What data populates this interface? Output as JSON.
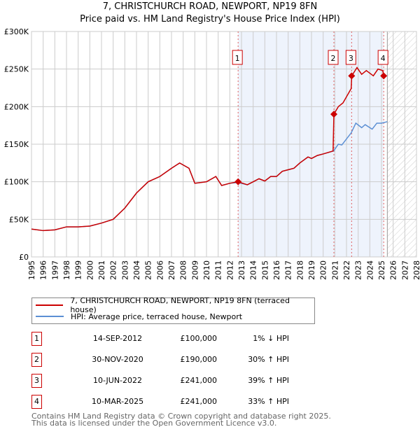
{
  "chart_data": {
    "type": "line",
    "title": "7, CHRISTCHURCH ROAD, NEWPORT, NP19 8FN",
    "subtitle": "Price paid vs. HM Land Registry's House Price Index (HPI)",
    "xlim": [
      1995,
      2028
    ],
    "ylim": [
      0,
      300000
    ],
    "x_ticks": [
      "1995",
      "1996",
      "1997",
      "1998",
      "1999",
      "2000",
      "2001",
      "2002",
      "2003",
      "2004",
      "2005",
      "2006",
      "2007",
      "2008",
      "2009",
      "2010",
      "2011",
      "2012",
      "2013",
      "2014",
      "2015",
      "2016",
      "2017",
      "2018",
      "2019",
      "2020",
      "2021",
      "2022",
      "2023",
      "2024",
      "2025",
      "2026",
      "2027",
      "2028"
    ],
    "y_ticks": [
      {
        "v": 0,
        "label": "£0"
      },
      {
        "v": 50000,
        "label": "£50K"
      },
      {
        "v": 100000,
        "label": "£100K"
      },
      {
        "v": 150000,
        "label": "£150K"
      },
      {
        "v": 200000,
        "label": "£200K"
      },
      {
        "v": 250000,
        "label": "£250K"
      },
      {
        "v": 300000,
        "label": "£300K"
      }
    ],
    "grid": true,
    "shaded_range": [
      2012.7,
      2025.2
    ],
    "forecast_hatch_from": 2025.5,
    "series": [
      {
        "name": "7, CHRISTCHURCH ROAD, NEWPORT, NP19 8FN (terraced house)",
        "color": "#cc0000",
        "x": [
          1995,
          1996,
          1997,
          1998,
          1999,
          2000,
          2001,
          2002,
          2003,
          2004,
          2005,
          2006,
          2007,
          2007.7,
          2008.5,
          2009,
          2010,
          2010.8,
          2011.3,
          2012,
          2012.7,
          2013.5,
          2014,
          2014.5,
          2015,
          2015.5,
          2016,
          2016.5,
          2017,
          2017.5,
          2018,
          2018.7,
          2019,
          2019.5,
          2020,
          2020.85,
          2020.92,
          2021.3,
          2021.7,
          2022.4,
          2022.45,
          2022.9,
          2023.3,
          2023.7,
          2024.3,
          2024.7,
          2025.1,
          2025.2
        ],
        "y": [
          37000,
          35000,
          36000,
          40000,
          40000,
          41000,
          45000,
          50000,
          65000,
          85000,
          100000,
          107000,
          118000,
          125000,
          118000,
          98000,
          100000,
          107000,
          95000,
          98000,
          100000,
          96000,
          100000,
          104000,
          101000,
          107000,
          107000,
          114000,
          116000,
          118000,
          125000,
          133000,
          131000,
          135000,
          137000,
          141000,
          190000,
          200000,
          205000,
          224000,
          241000,
          252000,
          243000,
          248000,
          241000,
          250000,
          248000,
          241000
        ]
      },
      {
        "name": "HPI: Average price, terraced house, Newport",
        "color": "#5b8fd4",
        "x": [
          1995,
          1996,
          1997,
          1998,
          1999,
          2000,
          2001,
          2002,
          2003,
          2004,
          2005,
          2006,
          2007,
          2007.7,
          2008.5,
          2009,
          2010,
          2010.8,
          2011.3,
          2012,
          2012.7,
          2013.5,
          2014,
          2014.5,
          2015,
          2015.5,
          2016,
          2016.5,
          2017,
          2017.5,
          2018,
          2018.7,
          2019,
          2019.5,
          2020,
          2020.9,
          2021.3,
          2021.6,
          2022.4,
          2022.8,
          2023.3,
          2023.6,
          2024.2,
          2024.6,
          2025,
          2025.5
        ],
        "y": [
          37000,
          35000,
          36000,
          40000,
          40000,
          41000,
          45000,
          50000,
          65000,
          85000,
          100000,
          107000,
          118000,
          125000,
          118000,
          98000,
          100000,
          107000,
          95000,
          98000,
          99000,
          96000,
          100000,
          104000,
          101000,
          107000,
          107000,
          114000,
          116000,
          118000,
          125000,
          133000,
          131000,
          135000,
          137000,
          141000,
          150000,
          149000,
          165000,
          178000,
          172000,
          176000,
          170000,
          178000,
          178000,
          180000
        ]
      }
    ],
    "sales": [
      {
        "n": "1",
        "x": 2012.71,
        "price": 100000,
        "date": "14-SEP-2012",
        "price_label": "£100,000",
        "hpi": "1% ↓ HPI"
      },
      {
        "n": "2",
        "x": 2020.92,
        "price": 190000,
        "date": "30-NOV-2020",
        "price_label": "£190,000",
        "hpi": "30% ↑ HPI"
      },
      {
        "n": "3",
        "x": 2022.44,
        "price": 241000,
        "date": "10-JUN-2022",
        "price_label": "£241,000",
        "hpi": "39% ↑ HPI"
      },
      {
        "n": "4",
        "x": 2025.19,
        "price": 241000,
        "date": "10-MAR-2025",
        "price_label": "£241,000",
        "hpi": "33% ↑ HPI"
      }
    ]
  },
  "footer": {
    "line1": "Contains HM Land Registry data © Crown copyright and database right 2025.",
    "line2": "This data is licensed under the Open Government Licence v3.0."
  }
}
